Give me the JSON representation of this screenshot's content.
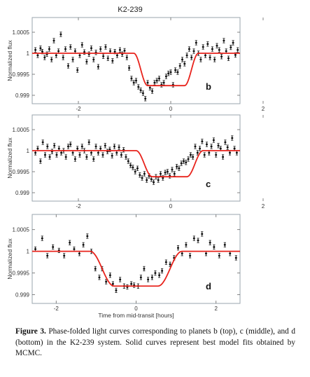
{
  "figure_title": "K2-239",
  "caption": {
    "label": "Figure 3.",
    "text": "Phase-folded light curves corresponding to planets b (top), c (middle), and d (bottom) in the K2-239 system. Solid curves represent best model fits obtained by MCMC."
  },
  "colors": {
    "model": "#e8231c",
    "points": "#111111",
    "frame": "#9aa4ad"
  },
  "chart_data": [
    {
      "type": "scatter",
      "panel_label": "b",
      "ylabel": "Normalized flux",
      "xlabel": "",
      "xlim": [
        -3.0,
        1.5
      ],
      "ylim": [
        0.9988,
        1.00085
      ],
      "x_ticks": [
        -2,
        0,
        2
      ],
      "x_tick_labels": [
        "-2",
        "0",
        "2"
      ],
      "y_ticks": [
        0.999,
        0.9995,
        1.0,
        1.0005
      ],
      "y_tick_labels": [
        "0.999",
        "0.9995",
        "1",
        "1.0005"
      ],
      "model": {
        "depth": 0.00077,
        "t1": -0.8,
        "t2": -0.5,
        "t3": 0.3,
        "t4": 0.6
      },
      "series": [
        {
          "x": [
            -2.93,
            -2.88,
            -2.82,
            -2.78,
            -2.73,
            -2.68,
            -2.63,
            -2.58,
            -2.53,
            -2.48,
            -2.43,
            -2.38,
            -2.33,
            -2.28,
            -2.22,
            -2.17,
            -2.12,
            -2.07,
            -2.02,
            -1.97,
            -1.92,
            -1.87,
            -1.82,
            -1.77,
            -1.72,
            -1.67,
            -1.62,
            -1.57,
            -1.52,
            -1.46,
            -1.41,
            -1.36,
            -1.31,
            -1.26,
            -1.21,
            -1.16,
            -1.1,
            -1.05,
            -1.0,
            -0.95,
            -0.9,
            -0.85,
            -0.8,
            -0.75,
            -0.7,
            -0.65,
            -0.6,
            -0.55,
            -0.5,
            -0.45,
            -0.4,
            -0.35,
            -0.3,
            -0.25,
            -0.2,
            -0.15,
            -0.1,
            -0.05,
            0.0,
            0.05,
            0.1,
            0.15,
            0.2,
            0.25,
            0.3,
            0.35,
            0.4,
            0.45,
            0.5,
            0.55,
            0.6,
            0.65,
            0.7,
            0.75,
            0.8,
            0.85,
            0.9,
            0.95,
            1.0,
            1.05,
            1.1,
            1.15,
            1.2,
            1.25,
            1.3,
            1.35,
            1.4,
            1.45
          ],
          "y": [
            1.00008,
            0.99995,
            1.00012,
            1.00004,
            0.9999,
            0.99998,
            1.0001,
            0.99985,
            1.0003,
            0.99995,
            1.00005,
            1.00045,
            0.9999,
            1.0001,
            0.9997,
            1.00015,
            0.99985,
            1.00005,
            0.9996,
            0.99995,
            1.0002,
            1.00003,
            0.9998,
            0.99998,
            1.00012,
            0.99985,
            1.00002,
            0.99968,
            1.0001,
            0.99993,
            1.00015,
            0.99988,
            1.00005,
            0.99982,
            1.00004,
            0.99995,
            1.00008,
            0.99998,
            1.00006,
            0.9999,
            0.99965,
            0.9994,
            0.9993,
            0.99935,
            0.9992,
            0.99912,
            0.99905,
            0.99892,
            0.9993,
            0.99918,
            0.9991,
            0.9993,
            0.99935,
            0.9994,
            0.99925,
            0.9993,
            0.99945,
            0.99952,
            0.99955,
            0.99925,
            0.9996,
            0.99955,
            0.9997,
            0.99985,
            0.99975,
            0.99995,
            1.0001,
            0.9999,
            1.00005,
            1.00025,
            1.0,
            0.99985,
            1.00015,
            0.99995,
            1.00022,
            0.9999,
            1.0001,
            0.99985,
            1.00018,
            1.00008,
            0.99992,
            1.0003,
            1.00005,
            0.99988,
            1.00014,
            1.00025,
            0.99996,
            1.00008
          ]
        }
      ]
    },
    {
      "type": "scatter",
      "panel_label": "c",
      "ylabel": "Normalized flux",
      "xlabel": "",
      "xlim": [
        -3.0,
        1.5
      ],
      "ylim": [
        0.9988,
        1.00085
      ],
      "x_ticks": [
        -2,
        0,
        2
      ],
      "x_tick_labels": [
        "-2",
        "0",
        "2"
      ],
      "y_ticks": [
        0.999,
        0.9995,
        1.0,
        1.0005
      ],
      "y_tick_labels": [
        "0.999",
        "0.9995",
        "1",
        "1.0005"
      ],
      "model": {
        "depth": 0.00062,
        "t1": -0.75,
        "t2": -0.4,
        "t3": 0.35,
        "t4": 0.7
      },
      "series": [
        {
          "x": [
            -2.93,
            -2.88,
            -2.82,
            -2.77,
            -2.72,
            -2.67,
            -2.62,
            -2.57,
            -2.52,
            -2.47,
            -2.42,
            -2.37,
            -2.32,
            -2.27,
            -2.22,
            -2.17,
            -2.12,
            -2.07,
            -2.02,
            -1.97,
            -1.92,
            -1.87,
            -1.82,
            -1.77,
            -1.72,
            -1.67,
            -1.62,
            -1.57,
            -1.52,
            -1.47,
            -1.42,
            -1.37,
            -1.32,
            -1.27,
            -1.22,
            -1.17,
            -1.12,
            -1.07,
            -1.02,
            -0.97,
            -0.92,
            -0.87,
            -0.82,
            -0.77,
            -0.72,
            -0.67,
            -0.62,
            -0.57,
            -0.52,
            -0.47,
            -0.42,
            -0.37,
            -0.32,
            -0.27,
            -0.22,
            -0.17,
            -0.12,
            -0.07,
            -0.02,
            0.03,
            0.08,
            0.13,
            0.18,
            0.23,
            0.28,
            0.33,
            0.38,
            0.43,
            0.48,
            0.53,
            0.58,
            0.63,
            0.68,
            0.73,
            0.78,
            0.83,
            0.88,
            0.93,
            0.98,
            1.03,
            1.08,
            1.13,
            1.18,
            1.23,
            1.28,
            1.33,
            1.38,
            1.43
          ],
          "y": [
            0.99995,
            1.00005,
            0.99975,
            1.0002,
            0.9999,
            1.0001,
            0.99985,
            0.99998,
            1.00012,
            0.9999,
            1.00005,
            0.99995,
            1.0,
            0.99985,
            1.0001,
            1.00015,
            0.99995,
            0.9998,
            1.00005,
            0.9999,
            1.0001,
            1.0,
            0.99985,
            1.0002,
            0.99995,
            0.9998,
            1.0001,
            0.99995,
            1.00005,
            0.9999,
            1.00012,
            0.99998,
            1.00003,
            0.99988,
            1.0001,
            0.99995,
            1.00008,
            0.9999,
            1.00002,
            0.99985,
            0.99975,
            0.99965,
            0.9996,
            0.9995,
            0.99958,
            0.99942,
            0.99935,
            0.99945,
            0.9993,
            0.9994,
            0.99932,
            0.99925,
            0.99938,
            0.9993,
            0.99945,
            0.99935,
            0.99948,
            0.9995,
            0.9994,
            0.99955,
            0.99945,
            0.99962,
            0.99958,
            0.9997,
            0.99975,
            0.99972,
            0.9998,
            0.9999,
            0.99985,
            1.0001,
            0.99995,
            1.00005,
            1.00022,
            0.9999,
            1.00015,
            0.99995,
            1.0001,
            1.00025,
            0.9999,
            1.00012,
            1.00005,
            0.99985,
            1.0002,
            1.00008,
            0.99995,
            1.0003,
            1.00005,
            0.99995
          ]
        }
      ]
    },
    {
      "type": "scatter",
      "panel_label": "d",
      "ylabel": "Normalized flux",
      "xlabel": "Time from mid-transit [hours]",
      "xlim": [
        -2.6,
        2.6
      ],
      "ylim": [
        0.9988,
        1.00085
      ],
      "x_ticks": [
        -2,
        0,
        2
      ],
      "x_tick_labels": [
        "-2",
        "0",
        "2"
      ],
      "y_ticks": [
        0.999,
        0.9995,
        1.0,
        1.0005
      ],
      "y_tick_labels": [
        "0.999",
        "0.9995",
        "1",
        "1.0005"
      ],
      "model": {
        "depth": 0.0008,
        "t1": -1.15,
        "t2": -0.55,
        "t3": 0.55,
        "t4": 1.15
      },
      "series": [
        {
          "x": [
            -2.52,
            -2.35,
            -2.22,
            -2.08,
            -1.93,
            -1.8,
            -1.66,
            -1.55,
            -1.42,
            -1.32,
            -1.22,
            -1.12,
            -1.02,
            -0.92,
            -0.85,
            -0.75,
            -0.65,
            -0.58,
            -0.5,
            -0.4,
            -0.3,
            -0.22,
            -0.12,
            -0.05,
            0.05,
            0.12,
            0.2,
            0.3,
            0.4,
            0.48,
            0.58,
            0.65,
            0.75,
            0.85,
            0.95,
            1.05,
            1.15,
            1.25,
            1.35,
            1.45,
            1.55,
            1.65,
            1.75,
            1.85,
            1.95,
            2.08,
            2.22,
            2.35,
            2.5
          ],
          "y": [
            1.00005,
            1.0003,
            0.9999,
            1.0001,
            1.00002,
            0.9999,
            1.0002,
            1.00005,
            0.99995,
            1.00015,
            1.00035,
            1.0,
            0.9996,
            0.9994,
            0.9996,
            0.9993,
            0.99945,
            0.99925,
            0.9991,
            0.99935,
            0.9992,
            0.99918,
            0.99925,
            0.99922,
            0.9992,
            0.9994,
            0.9996,
            0.99935,
            0.9994,
            0.9995,
            0.99945,
            0.99955,
            0.99975,
            0.9997,
            0.99985,
            1.00008,
            0.99995,
            1.00015,
            0.9999,
            1.0003,
            1.00025,
            1.0004,
            0.99995,
            1.0002,
            1.0001,
            0.9999,
            1.00015,
            0.99995,
            0.99985
          ]
        }
      ]
    }
  ]
}
